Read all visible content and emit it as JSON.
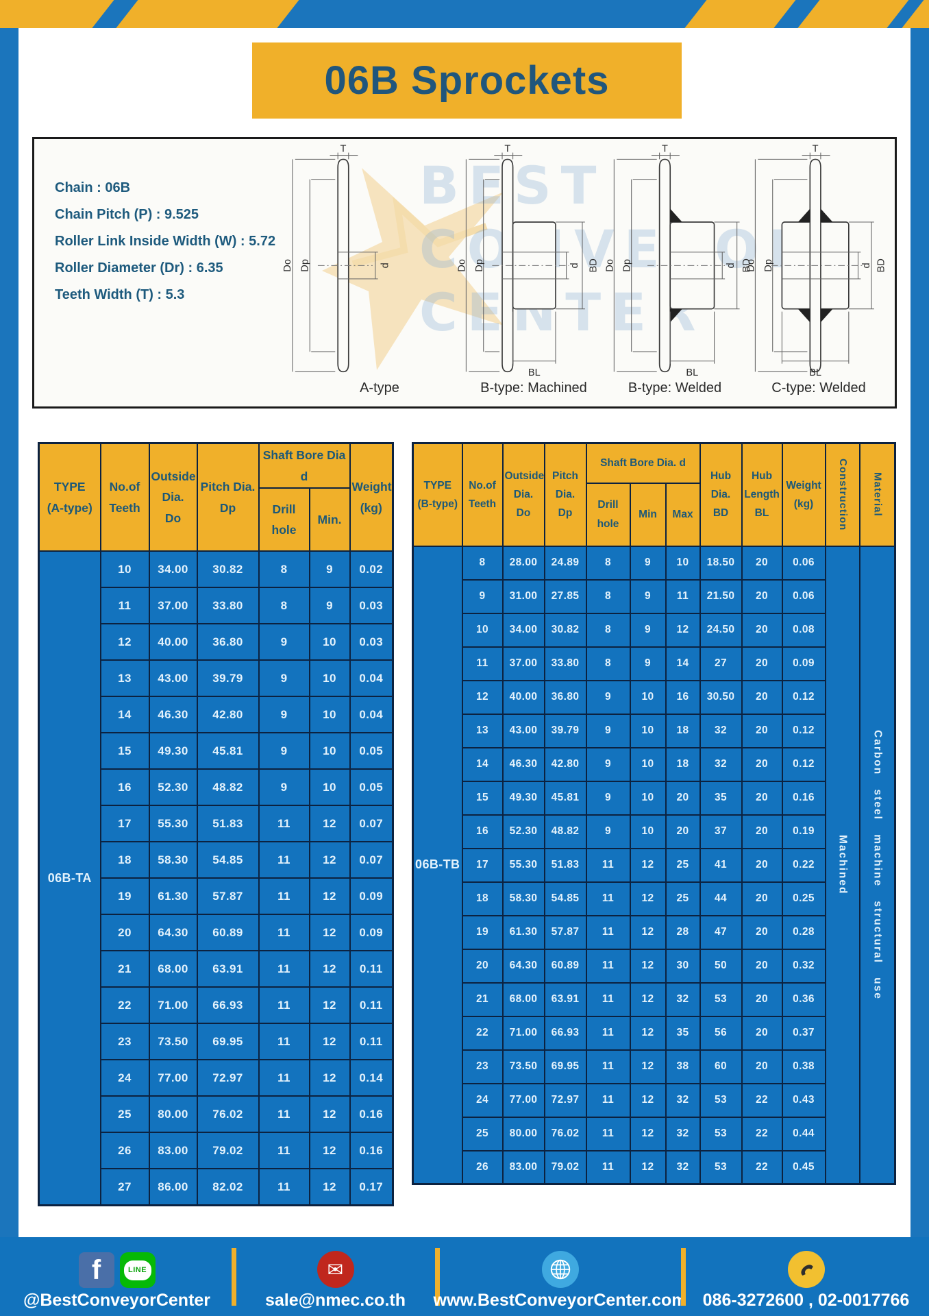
{
  "page": {
    "title": "06B Sprockets"
  },
  "specs": {
    "lines": [
      "Chain  : 06B",
      "Chain Pitch (P)  :  9.525",
      "Roller Link Inside Width (W)  :  5.72",
      "Roller Diameter (Dr)  : 6.35",
      "Teeth Width (T)  :  5.3"
    ]
  },
  "diagram": {
    "watermark": [
      "BEST",
      "CONVEYOR",
      "CENTER"
    ],
    "captions": {
      "a": "A-type",
      "bm": "B-type: Machined",
      "bw": "B-type: Welded",
      "cw": "C-type: Welded"
    },
    "dims": {
      "t": "T",
      "dOuter": "Do",
      "dPitch": "Dp",
      "d": "d",
      "bd": "BD",
      "bl": "BL"
    }
  },
  "tableA": {
    "type": "06B-TA",
    "header": {
      "type": "TYPE\n(A-type)",
      "teeth": "No.of\nTeeth",
      "outside": "Outside\nDia.\nDo",
      "pitch": "Pitch Dia.\nDp",
      "shaft": "Shaft Bore Dia d",
      "drill": "Drill hole",
      "min": "Min.",
      "weight": "Weight\n(kg)"
    },
    "rows": [
      [
        "10",
        "34.00",
        "30.82",
        "8",
        "9",
        "0.02"
      ],
      [
        "11",
        "37.00",
        "33.80",
        "8",
        "9",
        "0.03"
      ],
      [
        "12",
        "40.00",
        "36.80",
        "9",
        "10",
        "0.03"
      ],
      [
        "13",
        "43.00",
        "39.79",
        "9",
        "10",
        "0.04"
      ],
      [
        "14",
        "46.30",
        "42.80",
        "9",
        "10",
        "0.04"
      ],
      [
        "15",
        "49.30",
        "45.81",
        "9",
        "10",
        "0.05"
      ],
      [
        "16",
        "52.30",
        "48.82",
        "9",
        "10",
        "0.05"
      ],
      [
        "17",
        "55.30",
        "51.83",
        "11",
        "12",
        "0.07"
      ],
      [
        "18",
        "58.30",
        "54.85",
        "11",
        "12",
        "0.07"
      ],
      [
        "19",
        "61.30",
        "57.87",
        "11",
        "12",
        "0.09"
      ],
      [
        "20",
        "64.30",
        "60.89",
        "11",
        "12",
        "0.09"
      ],
      [
        "21",
        "68.00",
        "63.91",
        "11",
        "12",
        "0.11"
      ],
      [
        "22",
        "71.00",
        "66.93",
        "11",
        "12",
        "0.11"
      ],
      [
        "23",
        "73.50",
        "69.95",
        "11",
        "12",
        "0.11"
      ],
      [
        "24",
        "77.00",
        "72.97",
        "11",
        "12",
        "0.14"
      ],
      [
        "25",
        "80.00",
        "76.02",
        "11",
        "12",
        "0.16"
      ],
      [
        "26",
        "83.00",
        "79.02",
        "11",
        "12",
        "0.16"
      ],
      [
        "27",
        "86.00",
        "82.02",
        "11",
        "12",
        "0.17"
      ]
    ]
  },
  "tableB": {
    "type": "06B-TB",
    "construction": "Machined",
    "material": "Carbon steel machine structural use",
    "header": {
      "type": "TYPE\n(B-type)",
      "teeth": "No.of\nTeeth",
      "outside": "Outside\nDia.\nDo",
      "pitch": "Pitch\nDia.\nDp",
      "shaft": "Shaft Bore Dia. d",
      "drill": "Drill hole",
      "min": "Min",
      "max": "Max",
      "hubdia": "Hub\nDia.\nBD",
      "hublen": "Hub\nLength\nBL",
      "weight": "Weight\n(kg)",
      "construction": "Construction",
      "material": "Material"
    },
    "rows": [
      [
        "8",
        "28.00",
        "24.89",
        "8",
        "9",
        "10",
        "18.50",
        "20",
        "0.06"
      ],
      [
        "9",
        "31.00",
        "27.85",
        "8",
        "9",
        "11",
        "21.50",
        "20",
        "0.06"
      ],
      [
        "10",
        "34.00",
        "30.82",
        "8",
        "9",
        "12",
        "24.50",
        "20",
        "0.08"
      ],
      [
        "11",
        "37.00",
        "33.80",
        "8",
        "9",
        "14",
        "27",
        "20",
        "0.09"
      ],
      [
        "12",
        "40.00",
        "36.80",
        "9",
        "10",
        "16",
        "30.50",
        "20",
        "0.12"
      ],
      [
        "13",
        "43.00",
        "39.79",
        "9",
        "10",
        "18",
        "32",
        "20",
        "0.12"
      ],
      [
        "14",
        "46.30",
        "42.80",
        "9",
        "10",
        "18",
        "32",
        "20",
        "0.12"
      ],
      [
        "15",
        "49.30",
        "45.81",
        "9",
        "10",
        "20",
        "35",
        "20",
        "0.16"
      ],
      [
        "16",
        "52.30",
        "48.82",
        "9",
        "10",
        "20",
        "37",
        "20",
        "0.19"
      ],
      [
        "17",
        "55.30",
        "51.83",
        "11",
        "12",
        "25",
        "41",
        "20",
        "0.22"
      ],
      [
        "18",
        "58.30",
        "54.85",
        "11",
        "12",
        "25",
        "44",
        "20",
        "0.25"
      ],
      [
        "19",
        "61.30",
        "57.87",
        "11",
        "12",
        "28",
        "47",
        "20",
        "0.28"
      ],
      [
        "20",
        "64.30",
        "60.89",
        "11",
        "12",
        "30",
        "50",
        "20",
        "0.32"
      ],
      [
        "21",
        "68.00",
        "63.91",
        "11",
        "12",
        "32",
        "53",
        "20",
        "0.36"
      ],
      [
        "22",
        "71.00",
        "66.93",
        "11",
        "12",
        "35",
        "56",
        "20",
        "0.37"
      ],
      [
        "23",
        "73.50",
        "69.95",
        "11",
        "12",
        "38",
        "60",
        "20",
        "0.38"
      ],
      [
        "24",
        "77.00",
        "72.97",
        "11",
        "12",
        "32",
        "53",
        "22",
        "0.43"
      ],
      [
        "25",
        "80.00",
        "76.02",
        "11",
        "12",
        "32",
        "53",
        "22",
        "0.44"
      ],
      [
        "26",
        "83.00",
        "79.02",
        "11",
        "12",
        "32",
        "53",
        "22",
        "0.45"
      ]
    ]
  },
  "footer": {
    "fb_letter": "f",
    "line_text": "LINE",
    "social": "@BestConveyorCenter",
    "email": "sale@nmec.co.th",
    "website": "www.BestConveyorCenter.com",
    "phones": "086-3272600 , 02-0017766",
    "icons": {
      "mail": "✉"
    }
  },
  "colors": {
    "frame_blue": "#1b75bc",
    "cell_blue": "#1373be",
    "gold": "#f0b02a",
    "header_text": "#1c5878",
    "border_navy": "#0c2240"
  }
}
